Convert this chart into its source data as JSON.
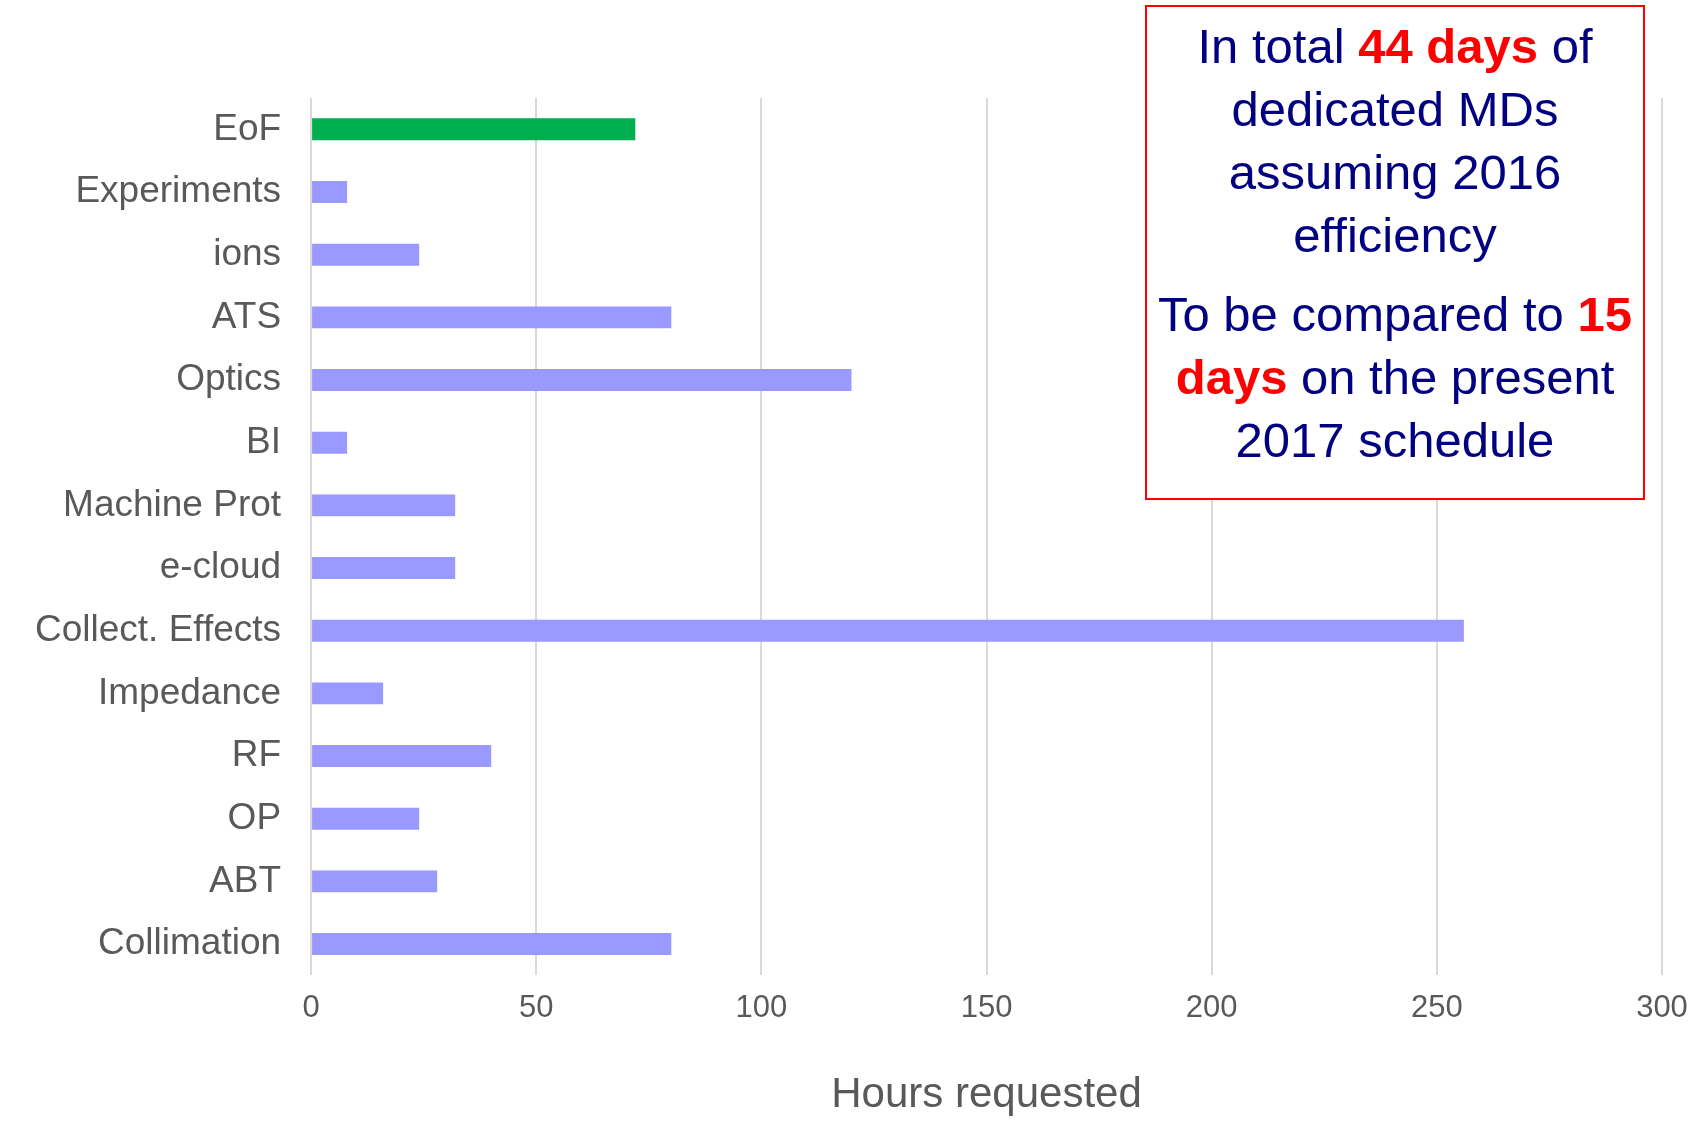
{
  "chart_data": {
    "type": "bar",
    "orientation": "horizontal",
    "categories": [
      "EoF",
      "Experiments",
      "ions",
      "ATS",
      "Optics",
      "BI",
      "Machine Prot",
      "e-cloud",
      "Collect. Effects",
      "Impedance",
      "RF",
      "OP",
      "ABT",
      "Collimation"
    ],
    "values": [
      72,
      8,
      24,
      80,
      120,
      8,
      32,
      32,
      256,
      16,
      40,
      24,
      28,
      80
    ],
    "colors": [
      "#00b050",
      "#9999ff",
      "#9999ff",
      "#9999ff",
      "#9999ff",
      "#9999ff",
      "#9999ff",
      "#9999ff",
      "#9999ff",
      "#9999ff",
      "#9999ff",
      "#9999ff",
      "#9999ff",
      "#9999ff"
    ],
    "xlim": [
      0,
      300
    ],
    "xticks": [
      0,
      50,
      100,
      150,
      200,
      250,
      300
    ],
    "xlabel": "Hours requested",
    "grid": "x",
    "legend": false,
    "annotations": [
      "In total 44 days of dedicated MDs assuming 2016 efficiency",
      "To be compared to 15 days on the present 2017 schedule"
    ]
  }
}
